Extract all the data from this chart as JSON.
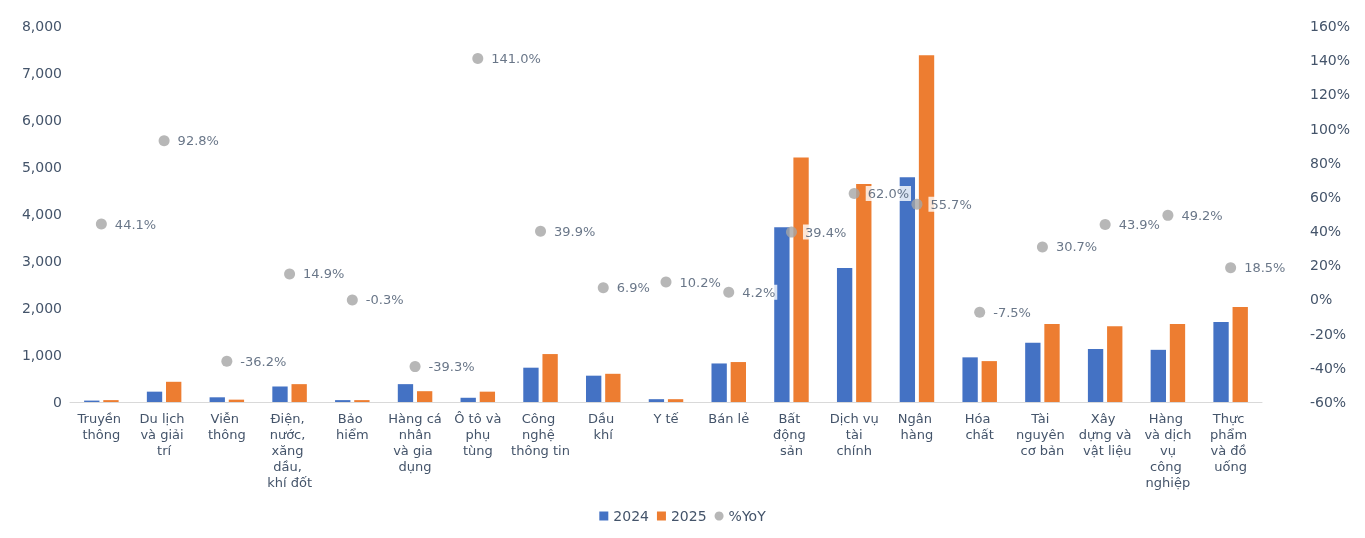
{
  "chart_data": {
    "type": "bar",
    "categories": [
      "Truyền thông",
      "Du lịch và giải trí",
      "Viễn thông",
      "Điện, nước, xăng dầu, khí đốt",
      "Bảo hiểm",
      "Hàng cá nhân và gia dụng",
      "Ô tô và phụ tùng",
      "Công nghệ thông tin",
      "Dầu khí",
      "Y tế",
      "Bán lẻ",
      "Bất động sản",
      "Dịch vụ tài chính",
      "Ngân hàng",
      "Hóa chất",
      "Tài nguyên cơ bản",
      "Xây dựng và vật liệu",
      "Hàng và dịch vụ công nghiệp",
      "Thực phẩm và đồ uống"
    ],
    "series": [
      {
        "name": "2024",
        "color": "#4472c4",
        "values": [
          30,
          220,
          100,
          330,
          40,
          380,
          90,
          730,
          560,
          60,
          820,
          3720,
          2850,
          4780,
          950,
          1260,
          1130,
          1110,
          1700
        ]
      },
      {
        "name": "2025",
        "color": "#ed7d31",
        "values": [
          40,
          430,
          50,
          380,
          40,
          230,
          220,
          1020,
          600,
          60,
          850,
          5200,
          4640,
          7380,
          870,
          1660,
          1610,
          1660,
          2020
        ]
      },
      {
        "name": "%YoY",
        "type": "scatter",
        "axis": "y2",
        "color": "#a5a5a5",
        "values": [
          44.1,
          92.8,
          -36.2,
          14.9,
          -0.3,
          -39.3,
          141.0,
          39.9,
          6.9,
          10.2,
          4.2,
          39.4,
          62.0,
          55.7,
          -7.5,
          30.7,
          43.9,
          49.2,
          18.5
        ],
        "value_labels": [
          "44.1%",
          "92.8%",
          "-36.2%",
          "14.9%",
          "-0.3%",
          "-39.3%",
          "141.0%",
          "39.9%",
          "6.9%",
          "10.2%",
          "4.2%",
          "39.4%",
          "62.0%",
          "55.7%",
          "-7.5%",
          "30.7%",
          "43.9%",
          "49.2%",
          "18.5%"
        ]
      }
    ],
    "ylim": [
      0,
      8000
    ],
    "yticks": [
      0,
      {
        "value": 1000,
        "label": "1,000"
      },
      {
        "value": 2000,
        "label": "2,000"
      },
      {
        "value": 3000,
        "label": "3,000"
      },
      {
        "value": 4000,
        "label": "4,000"
      },
      {
        "value": 5000,
        "label": "5,000"
      },
      {
        "value": 6000,
        "label": "6,000"
      },
      {
        "value": 7000,
        "label": "7,000"
      },
      {
        "value": 8000,
        "label": "8,000"
      }
    ],
    "y2lim": [
      -60,
      160
    ],
    "y2ticks": [
      {
        "value": -60,
        "label": "-60%"
      },
      {
        "value": -40,
        "label": "-40%"
      },
      {
        "value": -20,
        "label": "-20%"
      },
      {
        "value": 0,
        "label": "0%"
      },
      {
        "value": 20,
        "label": "20%"
      },
      {
        "value": 40,
        "label": "40%"
      },
      {
        "value": 60,
        "label": "60%"
      },
      {
        "value": 80,
        "label": "80%"
      },
      {
        "value": 100,
        "label": "100%"
      },
      {
        "value": 120,
        "label": "120%"
      },
      {
        "value": 140,
        "label": "140%"
      },
      {
        "value": 160,
        "label": "160%"
      }
    ],
    "grid": false,
    "legend": "bottom",
    "marker": "circle"
  }
}
